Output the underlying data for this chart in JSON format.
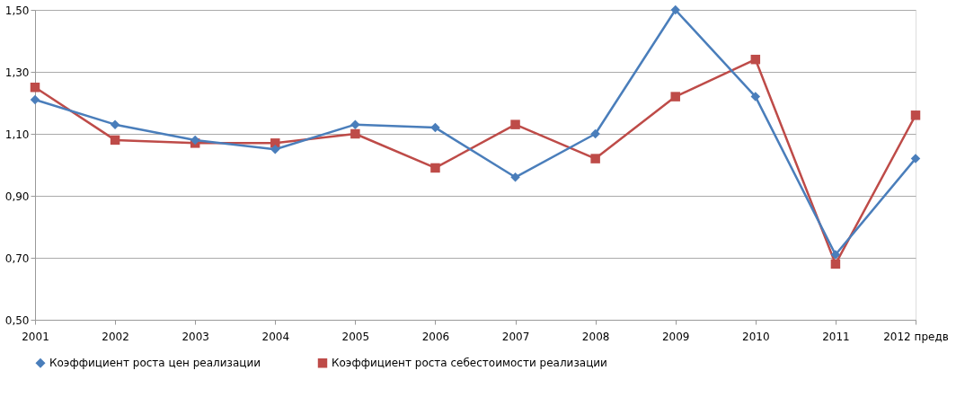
{
  "chart_data": {
    "type": "line",
    "categories": [
      "2001",
      "2002",
      "2003",
      "2004",
      "2005",
      "2006",
      "2007",
      "2008",
      "2009",
      "2010",
      "2011",
      "2012 предв"
    ],
    "series": [
      {
        "name": "Коэффициент роста цен реализации",
        "color": "#4a7ebb",
        "marker": "diamond",
        "values": [
          1.21,
          1.13,
          1.08,
          1.05,
          1.13,
          1.12,
          0.96,
          1.1,
          1.5,
          1.22,
          0.71,
          1.02
        ]
      },
      {
        "name": "Коэффициент роста себестоимости реализации",
        "color": "#be4b48",
        "marker": "square",
        "values": [
          1.25,
          1.08,
          1.07,
          1.07,
          1.1,
          0.99,
          1.13,
          1.02,
          1.22,
          1.34,
          0.68,
          1.16
        ]
      }
    ],
    "ylim": [
      0.5,
      1.5
    ],
    "yticks": [
      {
        "value": 0.5,
        "label": "0,50"
      },
      {
        "value": 0.7,
        "label": "0,70"
      },
      {
        "value": 0.9,
        "label": "0,90"
      },
      {
        "value": 1.1,
        "label": "1,10"
      },
      {
        "value": 1.3,
        "label": "1,30"
      },
      {
        "value": 1.5,
        "label": "1,50"
      }
    ],
    "grid": "y",
    "legend": "bottom",
    "line_style": "solid"
  }
}
